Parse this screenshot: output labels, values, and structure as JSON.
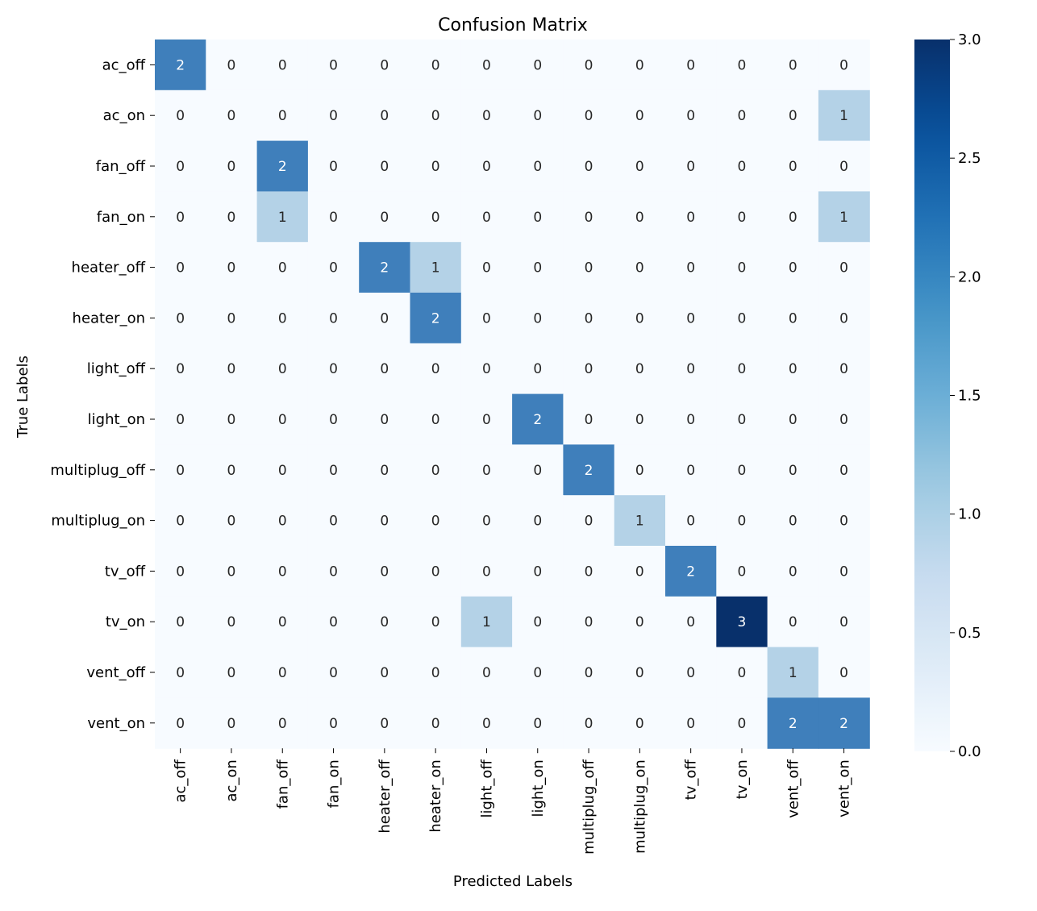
{
  "chart_data": {
    "type": "heatmap",
    "title": "Confusion Matrix",
    "xlabel": "Predicted Labels",
    "ylabel": "True Labels",
    "x_categories": [
      "ac_off",
      "ac_on",
      "fan_off",
      "fan_on",
      "heater_off",
      "heater_on",
      "light_off",
      "light_on",
      "multiplug_off",
      "multiplug_on",
      "tv_off",
      "tv_on",
      "vent_off",
      "vent_on"
    ],
    "y_categories": [
      "ac_off",
      "ac_on",
      "fan_off",
      "fan_on",
      "heater_off",
      "heater_on",
      "light_off",
      "light_on",
      "multiplug_off",
      "multiplug_on",
      "tv_off",
      "tv_on",
      "vent_off",
      "vent_on"
    ],
    "values": [
      [
        2,
        0,
        0,
        0,
        0,
        0,
        0,
        0,
        0,
        0,
        0,
        0,
        0,
        0
      ],
      [
        0,
        0,
        0,
        0,
        0,
        0,
        0,
        0,
        0,
        0,
        0,
        0,
        0,
        1
      ],
      [
        0,
        0,
        2,
        0,
        0,
        0,
        0,
        0,
        0,
        0,
        0,
        0,
        0,
        0
      ],
      [
        0,
        0,
        1,
        0,
        0,
        0,
        0,
        0,
        0,
        0,
        0,
        0,
        0,
        1
      ],
      [
        0,
        0,
        0,
        0,
        2,
        1,
        0,
        0,
        0,
        0,
        0,
        0,
        0,
        0
      ],
      [
        0,
        0,
        0,
        0,
        0,
        2,
        0,
        0,
        0,
        0,
        0,
        0,
        0,
        0
      ],
      [
        0,
        0,
        0,
        0,
        0,
        0,
        0,
        0,
        0,
        0,
        0,
        0,
        0,
        0
      ],
      [
        0,
        0,
        0,
        0,
        0,
        0,
        0,
        2,
        0,
        0,
        0,
        0,
        0,
        0
      ],
      [
        0,
        0,
        0,
        0,
        0,
        0,
        0,
        0,
        2,
        0,
        0,
        0,
        0,
        0
      ],
      [
        0,
        0,
        0,
        0,
        0,
        0,
        0,
        0,
        0,
        1,
        0,
        0,
        0,
        0
      ],
      [
        0,
        0,
        0,
        0,
        0,
        0,
        0,
        0,
        0,
        0,
        2,
        0,
        0,
        0
      ],
      [
        0,
        0,
        0,
        0,
        0,
        0,
        1,
        0,
        0,
        0,
        0,
        3,
        0,
        0
      ],
      [
        0,
        0,
        0,
        0,
        0,
        0,
        0,
        0,
        0,
        0,
        0,
        0,
        1,
        0
      ],
      [
        0,
        0,
        0,
        0,
        0,
        0,
        0,
        0,
        0,
        0,
        0,
        0,
        2,
        2
      ]
    ],
    "colormap": "Blues",
    "vmin": 0,
    "vmax": 3,
    "colorbar_ticks": [
      "0.0",
      "0.5",
      "1.0",
      "1.5",
      "2.0",
      "2.5",
      "3.0"
    ],
    "colors": {
      "zero": "#f7fbff",
      "one": "#b4d2e7",
      "two": "#3f7fbb",
      "three": "#08306b"
    }
  }
}
